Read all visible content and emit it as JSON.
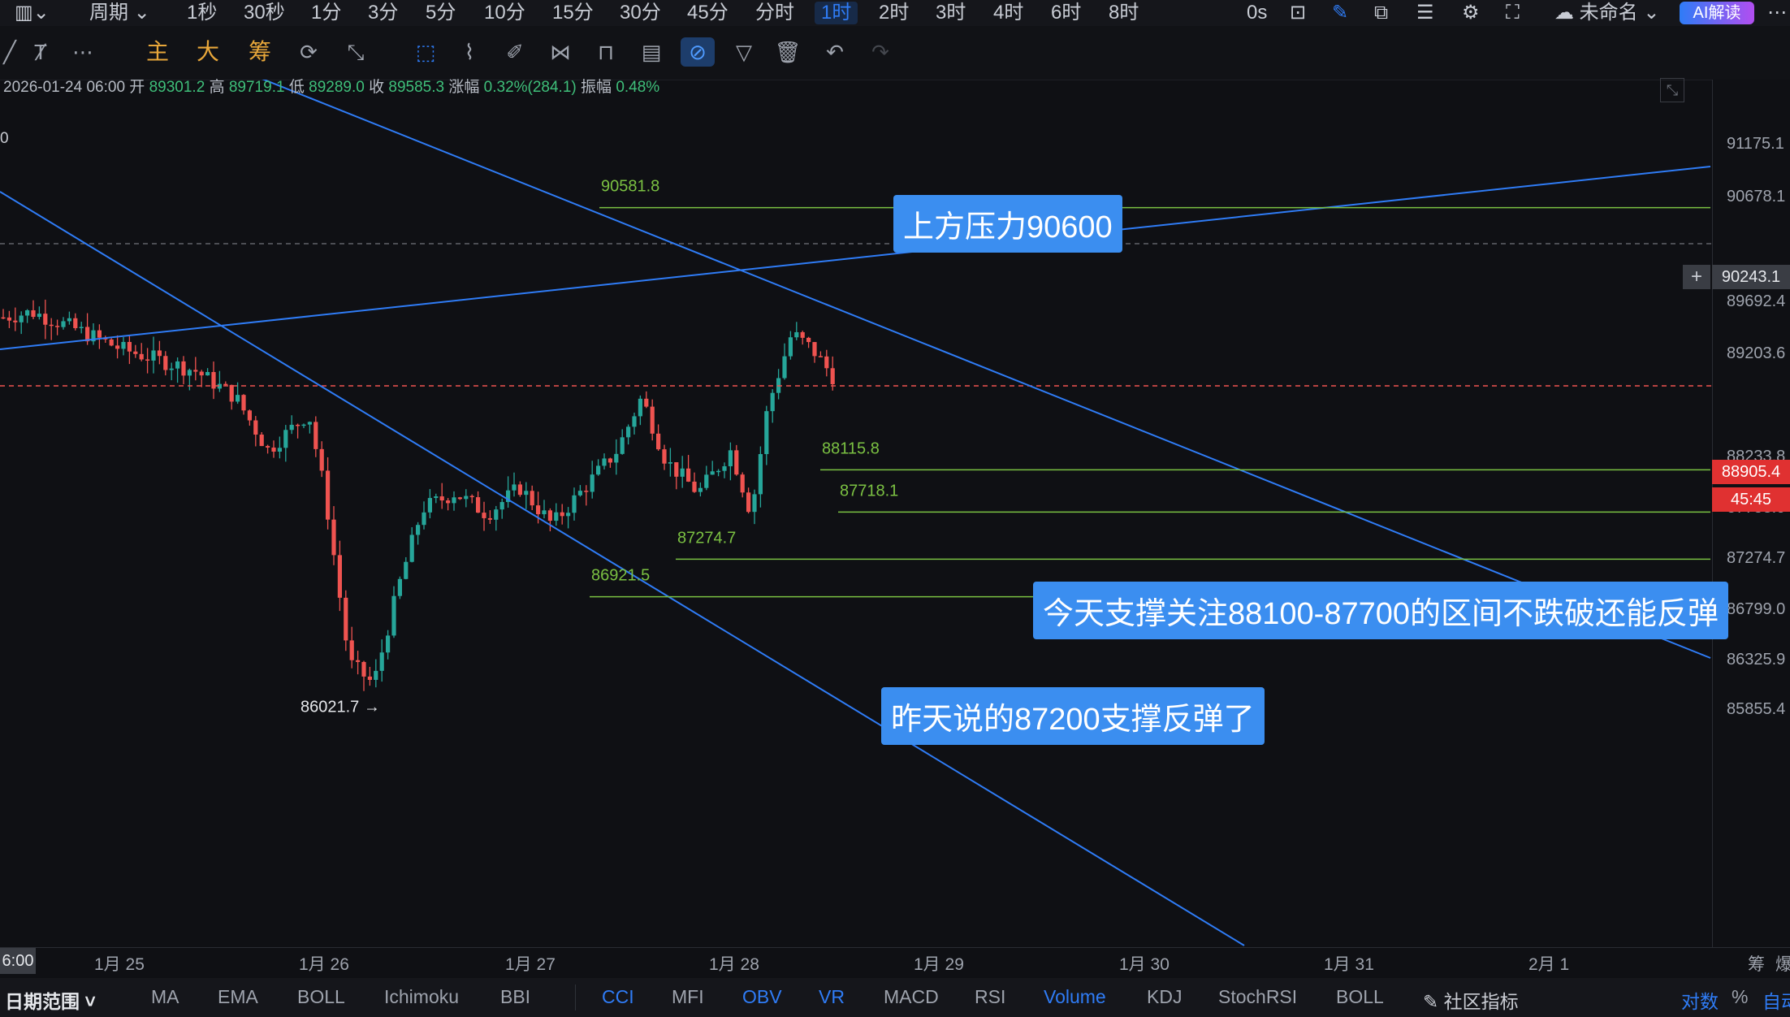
{
  "topbar": {
    "period_label": "周期",
    "intervals": [
      "1秒",
      "30秒",
      "1分",
      "3分",
      "5分",
      "10分",
      "15分",
      "30分",
      "45分",
      "分时",
      "1时",
      "2时",
      "3时",
      "4时",
      "6时",
      "8时"
    ],
    "active_interval": "1时",
    "timer": "0s",
    "layout_name": "未命名",
    "ai_button": "AI解读"
  },
  "toolbar": {
    "main": "主",
    "big": "大",
    "chip": "筹"
  },
  "ohlc": {
    "datetime": "2026-01-24 06:00",
    "open_label": "开",
    "open": "89301.2",
    "high_label": "高",
    "high": "89719.1",
    "low_label": "低",
    "low": "89289.0",
    "close_label": "收",
    "close": "89585.3",
    "change_label": "涨幅",
    "change": "0.32%(284.1)",
    "amplitude_label": "振幅",
    "amplitude": "0.48%",
    "edge_value": "0"
  },
  "price_axis": {
    "ticks": [
      "91175.1",
      "90678.1",
      "89692.4",
      "89203.6",
      "88233.8",
      "87753.0",
      "87274.7",
      "86799.0",
      "86325.9",
      "85855.4"
    ],
    "crosshair_price": "90243.1",
    "last_price": "88905.4",
    "countdown": "45:45"
  },
  "time_axis": {
    "cursor_label": "6:00",
    "labels": [
      "1月 25",
      "1月 26",
      "1月 27",
      "1月 28",
      "1月 29",
      "1月 30",
      "1月 31",
      "2月 1"
    ],
    "right_labels": [
      "筹",
      "爆"
    ]
  },
  "levels": [
    {
      "label": "90581.8",
      "value": 90581.8
    },
    {
      "label": "88115.8",
      "value": 88115.8
    },
    {
      "label": "87718.1",
      "value": 87718.1
    },
    {
      "label": "87274.7",
      "value": 87274.7
    },
    {
      "label": "86921.5",
      "value": 86921.5
    }
  ],
  "low_marker": "86021.7 →",
  "annotations": {
    "resistance": "上方压力90600",
    "support_today": "今天支撑关注88100-87700的区间不跌破还能反弹",
    "support_yesterday": "昨天说的87200支撑反弹了"
  },
  "bottombar": {
    "range_label": "日期范围",
    "indicators": [
      "MA",
      "EMA",
      "BOLL",
      "Ichimoku",
      "BBI",
      "CCI",
      "MFI",
      "OBV",
      "VR",
      "MACD",
      "RSI",
      "Volume",
      "KDJ",
      "StochRSI",
      "BOLL"
    ],
    "active_indicators": [
      "CCI",
      "OBV",
      "VR",
      "Volume"
    ],
    "community": "社区指标",
    "log_scale": "对数",
    "percent": "%",
    "auto": "自动"
  },
  "colors": {
    "background": "#0f1014",
    "up": "#26a69a",
    "down": "#ef5350",
    "trendline": "#2f7cf6",
    "level_line": "#7bc142",
    "note_bg": "#3b8ef0",
    "last_price_bg": "#e03131"
  },
  "chart_data": {
    "type": "candlestick",
    "x_range": [
      "2026-01-24",
      "2026-02-01"
    ],
    "y_range": [
      85700,
      91400
    ],
    "last_price": 88905.4,
    "low_point": 86021.7,
    "horizontal_levels": [
      90581.8,
      88115.8,
      87718.1,
      87274.7,
      86921.5
    ]
  }
}
